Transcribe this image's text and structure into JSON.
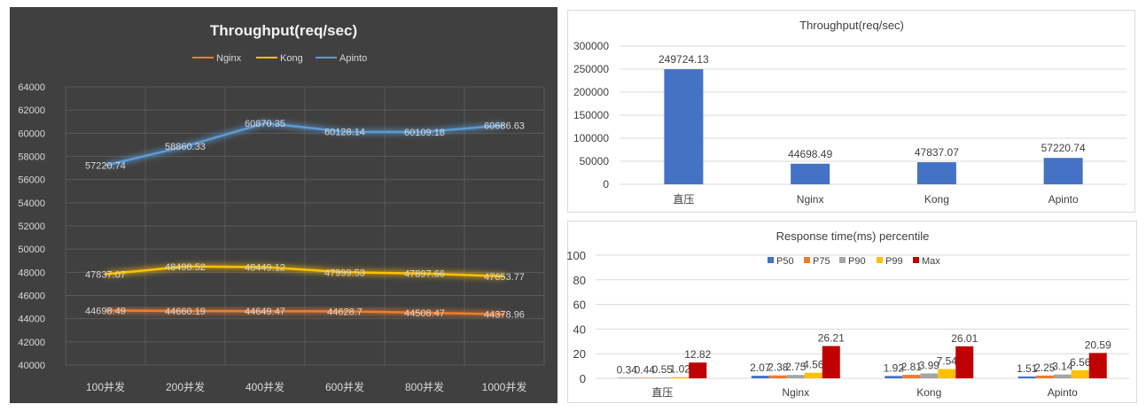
{
  "chart_data": [
    {
      "type": "line",
      "title": "Throughput(req/sec)",
      "categories": [
        "100并发",
        "200并发",
        "400并发",
        "600并发",
        "800并发",
        "1000并发"
      ],
      "series": [
        {
          "name": "Nginx",
          "values": [
            44698.49,
            44660.19,
            44649.47,
            44628.7,
            44508.47,
            44378.96
          ],
          "labels": [
            "44698.49",
            "44660.19",
            "44649.47",
            "44628.7",
            "44508.47",
            "44378.96"
          ]
        },
        {
          "name": "Kong",
          "values": [
            47837.07,
            48498.52,
            48449.12,
            47999.53,
            47897.66,
            47653.77
          ],
          "labels": [
            "47837.07",
            "48498.52",
            "48449.12",
            "47999.53",
            "47897.66",
            "47653.77"
          ]
        },
        {
          "name": "Apinto",
          "values": [
            57220.74,
            58860.33,
            60870.35,
            60128.14,
            60109.18,
            60686.63
          ],
          "labels": [
            "57220.74",
            "58860.33",
            "60870.35",
            "60128.14",
            "60109.18",
            "60686.63"
          ]
        }
      ],
      "ylim": [
        40000,
        64000
      ],
      "yticks": [
        40000,
        42000,
        44000,
        46000,
        48000,
        50000,
        52000,
        54000,
        56000,
        58000,
        60000,
        62000,
        64000
      ],
      "grid": true,
      "legend": "top"
    },
    {
      "type": "bar",
      "title": "Throughput(req/sec)",
      "categories": [
        "直压",
        "Nginx",
        "Kong",
        "Apinto"
      ],
      "values": [
        249724.13,
        44698.49,
        47837.07,
        57220.74
      ],
      "labels": [
        "249724.13",
        "44698.49",
        "47837.07",
        "57220.74"
      ],
      "ylim": [
        0,
        300000
      ],
      "yticks": [
        0,
        50000,
        100000,
        150000,
        200000,
        250000,
        300000
      ],
      "grid": true
    },
    {
      "type": "bar",
      "title": "Response time(ms) percentile",
      "categories": [
        "直压",
        "Nginx",
        "Kong",
        "Apinto"
      ],
      "series": [
        {
          "name": "P50",
          "values": [
            0.34,
            2.07,
            1.92,
            1.51
          ],
          "labels": [
            "0.34",
            "2.07",
            "1.92",
            "1.51"
          ]
        },
        {
          "name": "P75",
          "values": [
            0.44,
            2.38,
            2.81,
            2.25
          ],
          "labels": [
            "0.44",
            "2.38",
            "2.81",
            "2.25"
          ]
        },
        {
          "name": "P90",
          "values": [
            0.55,
            2.75,
            3.99,
            3.14
          ],
          "labels": [
            "0.55",
            "2.75",
            "3.99",
            "3.14"
          ]
        },
        {
          "name": "P99",
          "values": [
            1.02,
            4.56,
            7.54,
            6.56
          ],
          "labels": [
            "1.02",
            "4.56",
            "7.54",
            "6.56"
          ]
        },
        {
          "name": "Max",
          "values": [
            12.82,
            26.21,
            26.01,
            20.59
          ],
          "labels": [
            "12.82",
            "26.21",
            "26.01",
            "20.59"
          ]
        }
      ],
      "ylim": [
        0,
        100
      ],
      "yticks": [
        0,
        20,
        40,
        60,
        80,
        100
      ],
      "grid": true,
      "legend": "top"
    }
  ],
  "colors": {
    "line_series": [
      "#ed7d31",
      "#ffc000",
      "#5b9bd5"
    ],
    "line_grid": "#595959",
    "line_text": "#d9d9d9",
    "line_title": "#f2f2f2",
    "bar_fill": "#4472c4",
    "pct_series": [
      "#4472c4",
      "#ed7d31",
      "#a5a5a5",
      "#ffc000",
      "#c00000"
    ],
    "grid": "#d9d9d9",
    "text": "#404040"
  }
}
